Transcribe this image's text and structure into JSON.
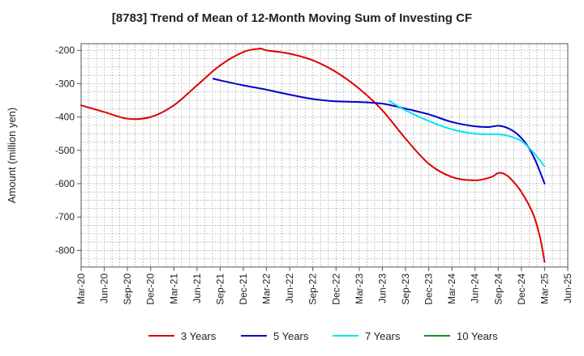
{
  "chart_data": {
    "type": "line",
    "title": "[8783]  Trend of Mean of 12-Month Moving Sum of Investing CF",
    "xlabel": "",
    "ylabel": "Amount (million yen)",
    "ylim": [
      -850,
      -180
    ],
    "yticks": [
      -200,
      -300,
      -400,
      -500,
      -600,
      -700,
      -800
    ],
    "x_tick_labels": [
      "Mar-20",
      "Jun-20",
      "Sep-20",
      "Dec-20",
      "Mar-21",
      "Jun-21",
      "Sep-21",
      "Dec-21",
      "Mar-22",
      "Jun-22",
      "Sep-22",
      "Dec-22",
      "Mar-23",
      "Jun-23",
      "Sep-23",
      "Dec-23",
      "Mar-24",
      "Jun-24",
      "Sep-24",
      "Dec-24",
      "Mar-25",
      "Jun-25"
    ],
    "grid": true,
    "legend_position": "bottom",
    "series": [
      {
        "name": "3 Years",
        "color": "#dd0000",
        "points": [
          [
            0,
            -365
          ],
          [
            1,
            -385
          ],
          [
            2,
            -405
          ],
          [
            3,
            -400
          ],
          [
            4,
            -365
          ],
          [
            5,
            -305
          ],
          [
            6,
            -245
          ],
          [
            7,
            -205
          ],
          [
            7.7,
            -195
          ],
          [
            8,
            -200
          ],
          [
            9,
            -210
          ],
          [
            10,
            -230
          ],
          [
            11,
            -265
          ],
          [
            12,
            -315
          ],
          [
            13,
            -380
          ],
          [
            14,
            -465
          ],
          [
            15,
            -540
          ],
          [
            16,
            -580
          ],
          [
            17,
            -590
          ],
          [
            17.7,
            -580
          ],
          [
            18,
            -568
          ],
          [
            18.3,
            -572
          ],
          [
            18.6,
            -590
          ],
          [
            19,
            -625
          ],
          [
            19.5,
            -690
          ],
          [
            19.8,
            -760
          ],
          [
            20,
            -835
          ]
        ]
      },
      {
        "name": "5 Years",
        "color": "#0000cc",
        "points": [
          [
            5.7,
            -285
          ],
          [
            6,
            -290
          ],
          [
            7,
            -305
          ],
          [
            8,
            -318
          ],
          [
            9,
            -333
          ],
          [
            10,
            -346
          ],
          [
            11,
            -353
          ],
          [
            12,
            -355
          ],
          [
            13,
            -360
          ],
          [
            14,
            -375
          ],
          [
            15,
            -392
          ],
          [
            16,
            -415
          ],
          [
            17,
            -428
          ],
          [
            17.6,
            -430
          ],
          [
            18,
            -426
          ],
          [
            18.4,
            -433
          ],
          [
            18.8,
            -450
          ],
          [
            19.2,
            -480
          ],
          [
            19.6,
            -530
          ],
          [
            20,
            -600
          ]
        ]
      },
      {
        "name": "7 Years",
        "color": "#00e5ee",
        "points": [
          [
            13.3,
            -352
          ],
          [
            14,
            -380
          ],
          [
            15,
            -412
          ],
          [
            16,
            -437
          ],
          [
            17,
            -450
          ],
          [
            18,
            -452
          ],
          [
            18.5,
            -458
          ],
          [
            19,
            -472
          ],
          [
            19.5,
            -505
          ],
          [
            20,
            -548
          ]
        ]
      },
      {
        "name": "10 Years",
        "color": "#228b22",
        "points": []
      }
    ]
  }
}
